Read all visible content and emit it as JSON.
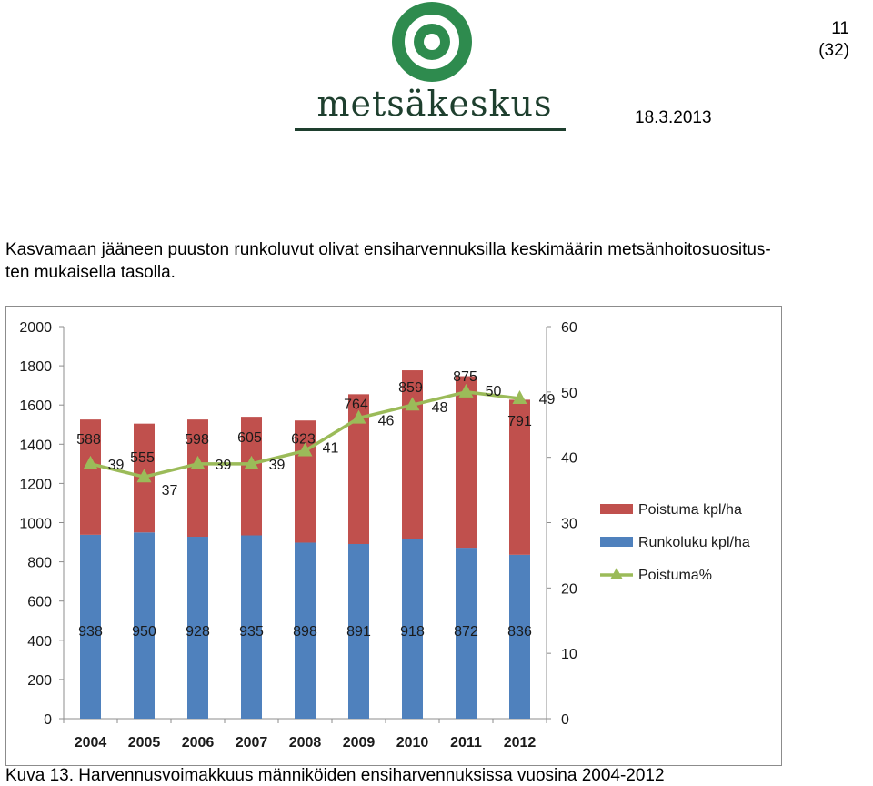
{
  "header": {
    "logo_text": "metsäkeskus",
    "page_number": "11",
    "page_total": "(32)",
    "date": "18.3.2013"
  },
  "intro": {
    "line1": "Kasvamaan jääneen puuston runkoluvut olivat ensiharvennuksilla keskimäärin metsänhoitosuositus-",
    "line2": "ten mukaisella tasolla."
  },
  "caption": "Kuva 13. Harvennusvoimakkuus männiköiden ensiharvennuksissa vuosina 2004-2012",
  "colors": {
    "poistuma": "#c0504d",
    "runkoluku": "#4f81bd",
    "poistuma_pct": "#9bbb59",
    "logo": "#1e3f2e",
    "logo_ring": "#2e8b4e"
  },
  "chart_data": {
    "type": "bar",
    "stacked": true,
    "categories": [
      "2004",
      "2005",
      "2006",
      "2007",
      "2008",
      "2009",
      "2010",
      "2011",
      "2012"
    ],
    "series": [
      {
        "name": "Runkoluku kpl/ha",
        "axis": "left",
        "values": [
          938,
          950,
          928,
          935,
          898,
          891,
          918,
          872,
          836
        ]
      },
      {
        "name": "Poistuma kpl/ha",
        "axis": "left",
        "values": [
          588,
          555,
          598,
          605,
          623,
          764,
          859,
          875,
          791
        ]
      },
      {
        "name": "Poistuma%",
        "axis": "right",
        "type": "line",
        "marker": "triangle",
        "values": [
          39,
          37,
          39,
          39,
          41,
          46,
          48,
          50,
          49
        ]
      }
    ],
    "left_axis": {
      "ylim": [
        0,
        2000
      ],
      "ticks": [
        "0",
        "200",
        "400",
        "600",
        "800",
        "1000",
        "1200",
        "1400",
        "1600",
        "1800",
        "2000"
      ]
    },
    "right_axis": {
      "ylim": [
        0,
        60
      ],
      "ticks": [
        "0",
        "10",
        "20",
        "30",
        "40",
        "50",
        "60"
      ]
    },
    "legend_items": [
      "Poistuma kpl/ha",
      "Runkoluku kpl/ha",
      "Poistuma%"
    ],
    "legend_position": "right",
    "grid": false
  }
}
